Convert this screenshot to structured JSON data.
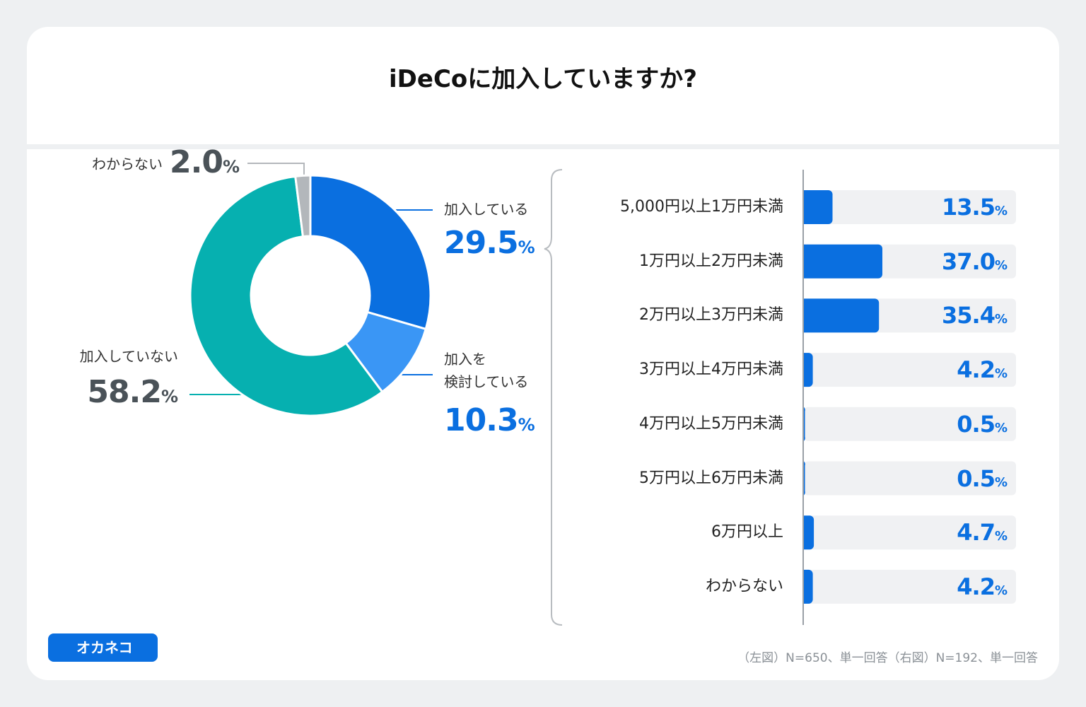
{
  "title": "iDeCoに加入していますか?",
  "chart_data": [
    {
      "type": "pie",
      "categories": [
        "加入している",
        "加入を\n検討している",
        "加入していない",
        "わからない"
      ],
      "values": [
        29.5,
        10.3,
        58.2,
        2.0
      ],
      "value_labels": [
        "29.5",
        "10.3",
        "58.2",
        "2.0"
      ],
      "unit": "%",
      "colors": [
        "#0a6fe0",
        "#3a96f5",
        "#06b0b0",
        "#b3b7bb"
      ],
      "value_label_colors": [
        "#0a6fe0",
        "#0a6fe0",
        "#4a5258",
        "#4a5258"
      ]
    },
    {
      "type": "hbar",
      "categories": [
        "5,000円以上1万円未満",
        "1万円以上2万円未満",
        "2万円以上3万円未満",
        "3万円以上4万円未満",
        "4万円以上5万円未満",
        "5万円以上6万円未満",
        "6万円以上",
        "わからない"
      ],
      "values": [
        13.5,
        37.0,
        35.4,
        4.2,
        0.5,
        0.5,
        4.7,
        4.2
      ],
      "value_labels": [
        "13.5",
        "37.0",
        "35.4",
        "4.2",
        "0.5",
        "0.5",
        "4.7",
        "4.2"
      ],
      "unit": "%",
      "xlim": [
        0,
        100
      ],
      "color": "#0a6fe0",
      "track_color": "#f0f1f3"
    }
  ],
  "note": "（左図）N=650、単一回答（右図）N=192、単一回答",
  "logo": "オカネコ"
}
